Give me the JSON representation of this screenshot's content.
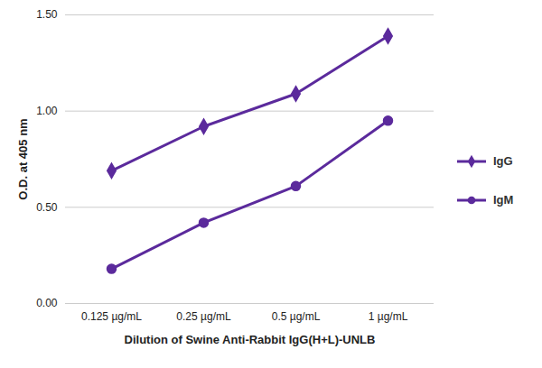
{
  "chart_data": {
    "type": "line",
    "x_label": "Dilution of Swine Anti-Rabbit IgG(H+L)-UNLB",
    "y_label": "O.D. at 405 nm",
    "categories": [
      "0.125 µg/mL",
      "0.25 µg/mL",
      "0.5 µg/mL",
      "1 µg/mL"
    ],
    "series": [
      {
        "name": "IgG",
        "color": "#5b2a9c",
        "marker": "diamond",
        "values": [
          0.69,
          0.92,
          1.09,
          1.39
        ]
      },
      {
        "name": "IgM",
        "color": "#5b2a9c",
        "marker": "circle",
        "values": [
          0.18,
          0.42,
          0.61,
          0.95
        ]
      }
    ],
    "ylim": [
      0,
      1.5
    ],
    "yticks": [
      {
        "value": 0,
        "label": "0.00"
      },
      {
        "value": 0.5,
        "label": "0.50"
      },
      {
        "value": 1,
        "label": "1.00"
      },
      {
        "value": 1.5,
        "label": "1.50"
      }
    ],
    "grid": true,
    "legend": "right"
  }
}
